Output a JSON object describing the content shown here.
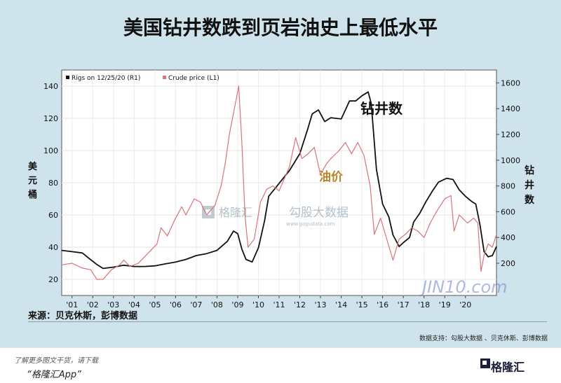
{
  "header": {
    "title": "美国钻井数跌到页岩油史上最低水平"
  },
  "chart_data": {
    "type": "line",
    "legend": [
      "Rigs on 12/25/20 (R1)",
      "Crude price (L1)"
    ],
    "x_ticks": [
      "'01",
      "'02",
      "'03",
      "'04",
      "'05",
      "'06",
      "'07",
      "'08",
      "'09",
      "'10",
      "'11",
      "'12",
      "'13",
      "'14",
      "'15",
      "'16",
      "'17",
      "'18",
      "'19",
      "'20"
    ],
    "left_axis": {
      "label": "美元/桶",
      "ticks": [
        "20",
        "40",
        "60",
        "80",
        "100",
        "120",
        "140"
      ],
      "range": [
        10,
        150
      ]
    },
    "right_axis": {
      "label": "钻井数",
      "ticks": [
        "200",
        "400",
        "600",
        "800",
        "1000",
        "1200",
        "1400",
        "1600"
      ],
      "range": [
        -50,
        1700
      ]
    },
    "annotations": {
      "rigs": "钻井数",
      "oil": "油价"
    },
    "series": [
      {
        "name": "Rigs on 12/25/20 (R1)",
        "axis": "right",
        "color": "#111111",
        "x": [
          2000.0,
          2000.5,
          2001.0,
          2001.3,
          2001.7,
          2002.0,
          2002.5,
          2003.0,
          2003.5,
          2004.0,
          2004.5,
          2005.0,
          2005.5,
          2006.0,
          2006.5,
          2007.0,
          2007.5,
          2008.0,
          2008.3,
          2008.5,
          2008.7,
          2008.9,
          2009.2,
          2009.5,
          2009.8,
          2010.0,
          2010.5,
          2011.0,
          2011.5,
          2011.9,
          2012.1,
          2012.4,
          2012.7,
          2013.0,
          2013.5,
          2013.9,
          2014.2,
          2014.5,
          2014.8,
          2014.95,
          2015.2,
          2015.5,
          2015.8,
          2016.0,
          2016.3,
          2016.5,
          2016.8,
          2017.0,
          2017.3,
          2017.6,
          2017.9,
          2018.2,
          2018.6,
          2018.9,
          2019.2,
          2019.5,
          2019.8,
          2020.0,
          2020.2,
          2020.4,
          2020.6,
          2020.8,
          2021.0
        ],
        "y": [
          300,
          290,
          280,
          240,
          190,
          160,
          170,
          185,
          175,
          175,
          180,
          195,
          210,
          230,
          260,
          275,
          300,
          370,
          450,
          430,
          310,
          230,
          210,
          320,
          530,
          720,
          820,
          920,
          1050,
          1250,
          1360,
          1390,
          1300,
          1330,
          1320,
          1460,
          1460,
          1500,
          1530,
          1440,
          930,
          660,
          560,
          420,
          330,
          360,
          400,
          520,
          590,
          680,
          760,
          830,
          860,
          850,
          770,
          720,
          680,
          660,
          500,
          290,
          250,
          260,
          330
        ]
      },
      {
        "name": "Crude price (L1)",
        "axis": "left",
        "color": "#d9737a",
        "x": [
          2000.0,
          2000.5,
          2001.0,
          2001.4,
          2001.7,
          2002.0,
          2002.4,
          2002.8,
          2003.0,
          2003.3,
          2003.7,
          2004.0,
          2004.3,
          2004.6,
          2004.8,
          2005.1,
          2005.5,
          2005.8,
          2006.0,
          2006.4,
          2006.7,
          2007.0,
          2007.4,
          2007.7,
          2007.9,
          2008.1,
          2008.4,
          2008.55,
          2008.7,
          2008.85,
          2009.0,
          2009.3,
          2009.6,
          2009.9,
          2010.2,
          2010.5,
          2010.8,
          2011.0,
          2011.3,
          2011.6,
          2011.9,
          2012.2,
          2012.5,
          2012.8,
          2013.0,
          2013.4,
          2013.7,
          2014.0,
          2014.3,
          2014.6,
          2014.9,
          2015.1,
          2015.4,
          2015.7,
          2016.0,
          2016.3,
          2016.6,
          2016.9,
          2017.2,
          2017.5,
          2017.8,
          2018.1,
          2018.5,
          2018.8,
          2018.95,
          2019.2,
          2019.6,
          2019.9,
          2020.1,
          2020.25,
          2020.4,
          2020.6,
          2020.8,
          2021.0
        ],
        "y": [
          29,
          30,
          27,
          26,
          20,
          20,
          26,
          29,
          32,
          28,
          30,
          34,
          38,
          42,
          52,
          47,
          58,
          65,
          60,
          70,
          68,
          60,
          66,
          78,
          92,
          110,
          130,
          140,
          105,
          60,
          40,
          45,
          68,
          76,
          78,
          75,
          84,
          90,
          108,
          95,
          98,
          102,
          85,
          92,
          95,
          100,
          105,
          98,
          105,
          97,
          78,
          48,
          58,
          45,
          32,
          45,
          48,
          52,
          50,
          46,
          55,
          62,
          70,
          72,
          50,
          60,
          55,
          58,
          55,
          25,
          35,
          42,
          40,
          48
        ]
      }
    ]
  },
  "source": {
    "text": "来源：贝克休斯，彭博数据"
  },
  "support": {
    "text": "数据支持：勾股大数据 、贝克休斯、彭博数据"
  },
  "watermarks": {
    "gelonghui": "格隆汇",
    "gogudata": "勾股大数据",
    "gogudata_url": "www.gogudata.com",
    "jin10": "JIN10.com"
  },
  "footer": {
    "line1": "了解更多图文干货，请下载",
    "line2": "“格隆汇App”",
    "brand": "格隆汇"
  }
}
